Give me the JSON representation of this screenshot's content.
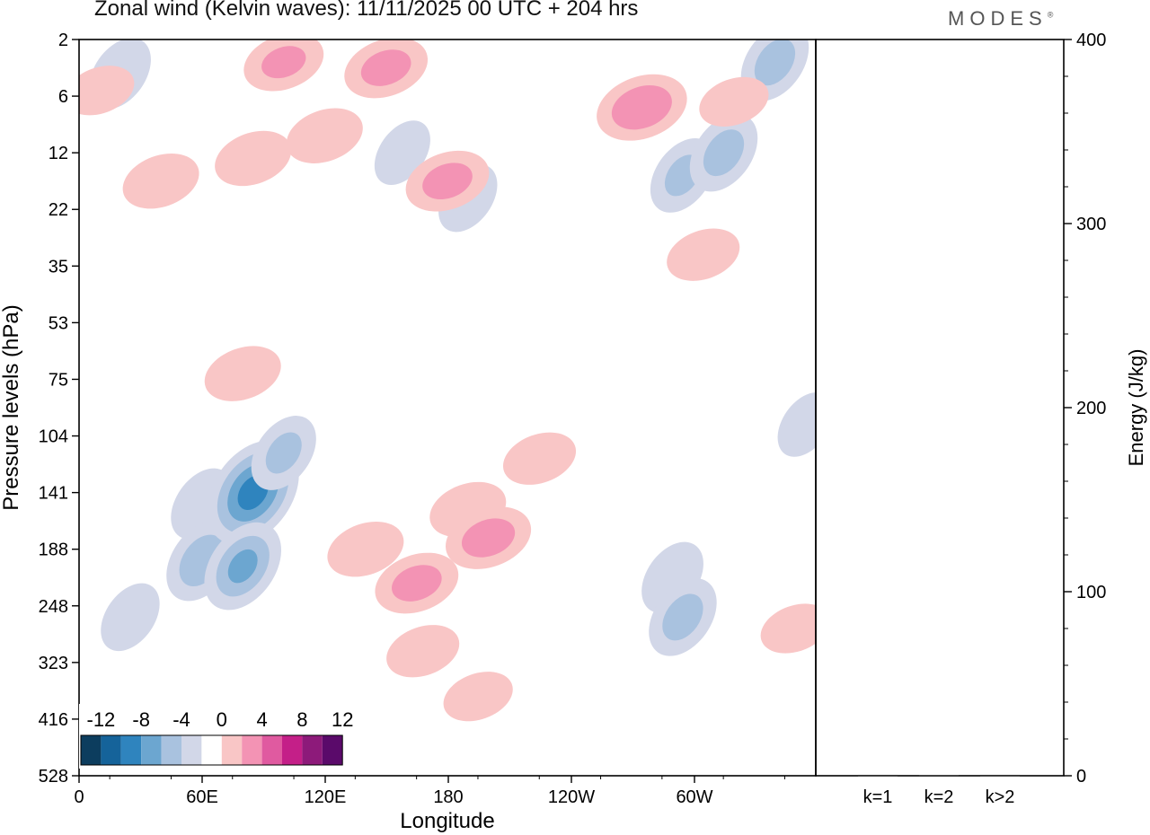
{
  "brand": "MODES",
  "brand_mark": "®",
  "chart_data": {
    "type": "heatmap",
    "title": "Zonal wind (Kelvin waves):  11/11/2025  00 UTC  + 204 hrs",
    "xlabel": "Longitude",
    "ylabel": "Pressure levels (hPa)",
    "x_ticks": [
      "0",
      "60E",
      "120E",
      "180",
      "120W",
      "60W"
    ],
    "y_ticks": [
      "2",
      "6",
      "12",
      "22",
      "35",
      "53",
      "75",
      "104",
      "141",
      "188",
      "248",
      "323",
      "416",
      "528"
    ],
    "colorbar": {
      "labels": [
        "-12",
        "-8",
        "-4",
        "0",
        "4",
        "8",
        "12"
      ],
      "colors": [
        "#0c3d5e",
        "#15639a",
        "#2f84be",
        "#6ca6d0",
        "#a9c2df",
        "#d2d7e8",
        "#ffffff",
        "#f9c6c6",
        "#f393b4",
        "#e05aa0",
        "#c41f88",
        "#8d1a7a",
        "#5a0a6a"
      ]
    },
    "anomalies": [
      {
        "lon": 60,
        "lev": 8.2,
        "value": -3.5
      },
      {
        "lon": 60,
        "lev": 9.2,
        "value": -5.0
      },
      {
        "lon": 85,
        "lev": 8.0,
        "value": -8.5
      },
      {
        "lon": 80,
        "lev": 9.3,
        "value": -6.0
      },
      {
        "lon": 100,
        "lev": 7.3,
        "value": -4.0
      },
      {
        "lon": 25,
        "lev": 10.2,
        "value": -3.0
      },
      {
        "lon": 140,
        "lev": 9.0,
        "value": 3.5
      },
      {
        "lon": 165,
        "lev": 9.6,
        "value": 4.5
      },
      {
        "lon": 190,
        "lev": 8.3,
        "value": 3.5
      },
      {
        "lon": 200,
        "lev": 8.8,
        "value": 4.8
      },
      {
        "lon": 225,
        "lev": 7.4,
        "value": 3.0
      },
      {
        "lon": 168,
        "lev": 10.8,
        "value": 3.0
      },
      {
        "lon": 195,
        "lev": 11.6,
        "value": 2.5
      },
      {
        "lon": 80,
        "lev": 5.9,
        "value": 3.5
      },
      {
        "lon": 290,
        "lev": 9.5,
        "value": -3.5
      },
      {
        "lon": 295,
        "lev": 10.2,
        "value": -4.5
      },
      {
        "lon": 305,
        "lev": 3.8,
        "value": 3.0
      },
      {
        "lon": 40,
        "lev": 2.5,
        "value": 3.5
      },
      {
        "lon": 85,
        "lev": 2.1,
        "value": 3.5
      },
      {
        "lon": 120,
        "lev": 1.7,
        "value": 3.5
      },
      {
        "lon": 158,
        "lev": 2.0,
        "value": -2.5
      },
      {
        "lon": 190,
        "lev": 2.8,
        "value": -3.0
      },
      {
        "lon": 180,
        "lev": 2.5,
        "value": 4.5
      },
      {
        "lon": 275,
        "lev": 1.2,
        "value": 5.5
      },
      {
        "lon": 295,
        "lev": 2.4,
        "value": -4.0
      },
      {
        "lon": 315,
        "lev": 2.0,
        "value": -4.5
      },
      {
        "lon": 100,
        "lev": 0.4,
        "value": 4.0
      },
      {
        "lon": 150,
        "lev": 0.5,
        "value": 4.5
      },
      {
        "lon": 20,
        "lev": 0.6,
        "value": -3.5
      },
      {
        "lon": 340,
        "lev": 0.4,
        "value": -4.5
      },
      {
        "lon": 320,
        "lev": 1.1,
        "value": 2.5
      },
      {
        "lon": 10,
        "lev": 0.9,
        "value": 2.5
      },
      {
        "lon": 350,
        "lev": 10.4,
        "value": 2.5
      },
      {
        "lon": 355,
        "lev": 6.8,
        "value": -2.5
      }
    ],
    "energy_panel": {
      "ylabel": "Energy (J/kg)",
      "ylim": [
        0,
        400
      ],
      "y_ticks": [
        "0",
        "100",
        "200",
        "300",
        "400"
      ],
      "categories": [
        "k=1",
        "k=2",
        "k>2"
      ],
      "values": [
        0.5,
        0.3,
        0.5
      ]
    }
  }
}
